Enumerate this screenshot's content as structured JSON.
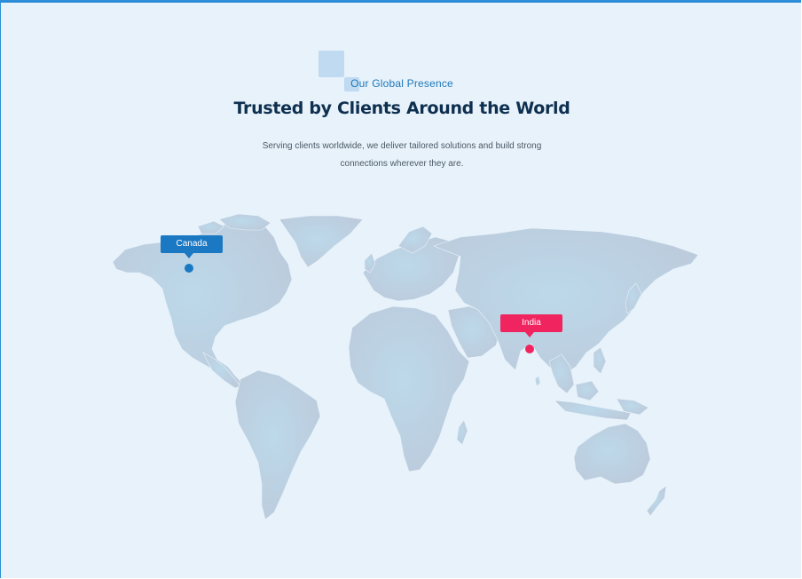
{
  "section": {
    "eyebrow": "Our Global Presence",
    "title": "Trusted by Clients Around the World",
    "description": "Serving clients worldwide, we deliver tailored solutions and build strong connections wherever they are."
  },
  "locations": [
    {
      "name": "Canada",
      "color": "#1b78c2"
    },
    {
      "name": "India",
      "color": "#f0245f"
    }
  ],
  "colors": {
    "background": "#e7f2fa",
    "map": "#b9cfe2",
    "heading": "#0e2f4f",
    "eyebrow": "#1f77b9"
  }
}
